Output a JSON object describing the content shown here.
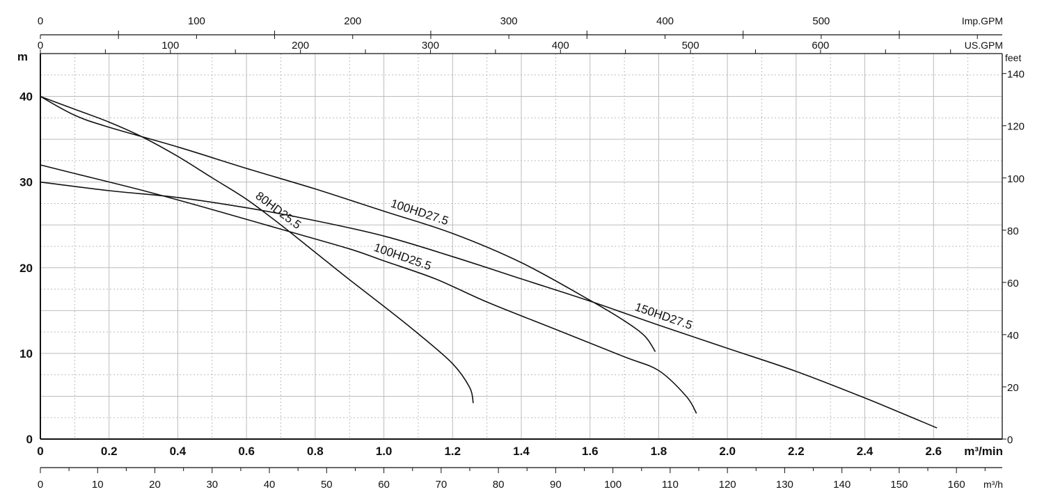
{
  "chart_data": {
    "type": "line",
    "xlabel": "m³/min",
    "ylabel": "m",
    "xlim": [
      0,
      2.8
    ],
    "ylim": [
      0,
      45
    ],
    "grid": true,
    "x_ticks": [
      "0",
      "0.2",
      "0.4",
      "0.6",
      "0.8",
      "1.0",
      "1.2",
      "1.4",
      "1.6",
      "1.8",
      "2.0",
      "2.2",
      "2.4",
      "2.6"
    ],
    "y_ticks": [
      "0",
      "10",
      "20",
      "30",
      "40"
    ],
    "secondary_axes": {
      "right": {
        "label": "feet",
        "ticks": [
          "0",
          "20",
          "40",
          "60",
          "80",
          "100",
          "120",
          "140"
        ]
      },
      "top_imp": {
        "label": "Imp.GPM",
        "ticks": [
          "0",
          "100",
          "200",
          "300",
          "400",
          "500"
        ]
      },
      "top_us": {
        "label": "US.GPM",
        "ticks": [
          "0",
          "100",
          "200",
          "300",
          "400",
          "500",
          "600"
        ]
      },
      "bottom_mh": {
        "label": "m³/h",
        "ticks": [
          "0",
          "10",
          "20",
          "30",
          "40",
          "50",
          "60",
          "70",
          "80",
          "90",
          "100",
          "110",
          "120",
          "130",
          "140",
          "150",
          "160"
        ]
      }
    },
    "series": [
      {
        "name": "80HD25.5",
        "points": [
          [
            0,
            40
          ],
          [
            0.1,
            38.5
          ],
          [
            0.2,
            37
          ],
          [
            0.3,
            35.2
          ],
          [
            0.4,
            33
          ],
          [
            0.5,
            30.5
          ],
          [
            0.6,
            28
          ],
          [
            0.7,
            25
          ],
          [
            0.8,
            21.8
          ],
          [
            0.9,
            18.6
          ],
          [
            1.0,
            15.5
          ],
          [
            1.1,
            12.3
          ],
          [
            1.2,
            8.8
          ],
          [
            1.25,
            6
          ],
          [
            1.26,
            4.2
          ]
        ]
      },
      {
        "name": "100HD27.5",
        "points": [
          [
            0,
            40
          ],
          [
            0.1,
            37.8
          ],
          [
            0.2,
            36.4
          ],
          [
            0.4,
            34.1
          ],
          [
            0.6,
            31.6
          ],
          [
            0.8,
            29.2
          ],
          [
            1.0,
            26.6
          ],
          [
            1.2,
            24
          ],
          [
            1.4,
            20.6
          ],
          [
            1.6,
            16.2
          ],
          [
            1.7,
            13.8
          ],
          [
            1.76,
            12
          ],
          [
            1.79,
            10.2
          ]
        ]
      },
      {
        "name": "100HD25.5",
        "points": [
          [
            0,
            32
          ],
          [
            0.1,
            31
          ],
          [
            0.3,
            29
          ],
          [
            0.5,
            26.8
          ],
          [
            0.7,
            24.5
          ],
          [
            0.9,
            22.2
          ],
          [
            1.0,
            20.8
          ],
          [
            1.15,
            18.7
          ],
          [
            1.3,
            16
          ],
          [
            1.5,
            12.8
          ],
          [
            1.7,
            9.6
          ],
          [
            1.8,
            8
          ],
          [
            1.88,
            5
          ],
          [
            1.91,
            3
          ]
        ]
      },
      {
        "name": "150HD27.5",
        "points": [
          [
            0,
            30
          ],
          [
            0.2,
            29
          ],
          [
            0.4,
            28.2
          ],
          [
            0.6,
            27
          ],
          [
            0.8,
            25.5
          ],
          [
            1.0,
            23.7
          ],
          [
            1.2,
            21.3
          ],
          [
            1.4,
            18.7
          ],
          [
            1.6,
            16.1
          ],
          [
            1.8,
            13.3
          ],
          [
            2.0,
            10.6
          ],
          [
            2.2,
            7.9
          ],
          [
            2.4,
            4.8
          ],
          [
            2.61,
            1.3
          ]
        ]
      }
    ]
  }
}
